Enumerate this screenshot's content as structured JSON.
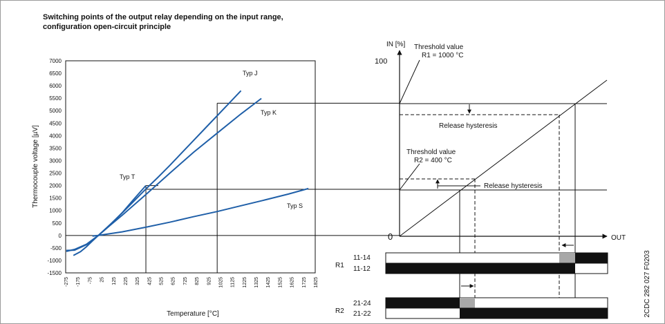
{
  "title": {
    "line1": "Switching points of the output relay depending on the input range,",
    "line2": "configuration open-circuit principle"
  },
  "figure_id": "2CDC 282 027 F0203",
  "colors": {
    "curve": "#1f5fa8",
    "line": "#111111",
    "relay_on": "#111111",
    "relay_off": "#ffffff",
    "relay_transition": "#a8a8a8"
  },
  "chart_data": [
    {
      "type": "line",
      "title": "",
      "xlabel": "Temperature [°C]",
      "ylabel": "Thermocouple voltage [µV]",
      "xlim": [
        -275,
        1825
      ],
      "ylim": [
        -1500,
        7000
      ],
      "grid": false,
      "x_ticks": [
        "-275",
        "-175",
        "-75",
        "25",
        "125",
        "225",
        "325",
        "425",
        "525",
        "625",
        "725",
        "825",
        "925",
        "1025",
        "1125",
        "1225",
        "1325",
        "1425",
        "1525",
        "1625",
        "1725",
        "1825"
      ],
      "y_ticks": [
        "7000",
        "6500",
        "6000",
        "5500",
        "5000",
        "4500",
        "4000",
        "3500",
        "3000",
        "2500",
        "2000",
        "1500",
        "1000",
        "500",
        "0",
        "-500",
        "-1000",
        "-1500"
      ],
      "series": [
        {
          "name": "Typ J",
          "x": [
            -210,
            -150,
            -100,
            -50,
            0,
            100,
            200,
            300,
            400,
            500,
            600,
            700,
            800,
            900,
            1000,
            1100,
            1200
          ],
          "y": [
            -800,
            -650,
            -450,
            -220,
            0,
            440,
            900,
            1380,
            1860,
            2320,
            2800,
            3300,
            3800,
            4300,
            4800,
            5300,
            5800
          ]
        },
        {
          "name": "Typ K",
          "x": [
            -270,
            -200,
            -100,
            0,
            100,
            200,
            400,
            600,
            800,
            1000,
            1200,
            1372
          ],
          "y": [
            -600,
            -590,
            -370,
            0,
            410,
            810,
            1640,
            2490,
            3330,
            4100,
            4870,
            5490
          ]
        },
        {
          "name": "Typ T",
          "x": [
            -270,
            -200,
            -100,
            0,
            100,
            200,
            300,
            400
          ],
          "y": [
            -640,
            -560,
            -350,
            0,
            430,
            910,
            1460,
            2000
          ]
        },
        {
          "name": "Typ S",
          "x": [
            -50,
            0,
            200,
            400,
            600,
            800,
            1000,
            1200,
            1400,
            1600,
            1768
          ],
          "y": [
            -24,
            0,
            144,
            330,
            530,
            750,
            960,
            1190,
            1420,
            1660,
            1880
          ]
        }
      ],
      "reference_lines": [
        {
          "x": 400,
          "y": 2000
        },
        {
          "x": 1000,
          "y": 5300
        },
        {
          "y": 1850
        }
      ]
    }
  ],
  "relay_diagram": {
    "axis_y_label": "IN [%]",
    "y_100": "100",
    "origin": "0",
    "axis_x_label": "OUT",
    "threshold_r1": {
      "line1": "Threshold value",
      "line2": "R1 = 1000 °C"
    },
    "threshold_r2": {
      "line1": "Threshold value",
      "line2": "R2 = 400 °C"
    },
    "release_hysteresis_1": "Release hysteresis",
    "release_hysteresis_2": "Release hysteresis",
    "relays": [
      {
        "name": "R1",
        "contacts": [
          "11-14",
          "11-12"
        ]
      },
      {
        "name": "R2",
        "contacts": [
          "21-24",
          "21-22"
        ]
      }
    ]
  }
}
